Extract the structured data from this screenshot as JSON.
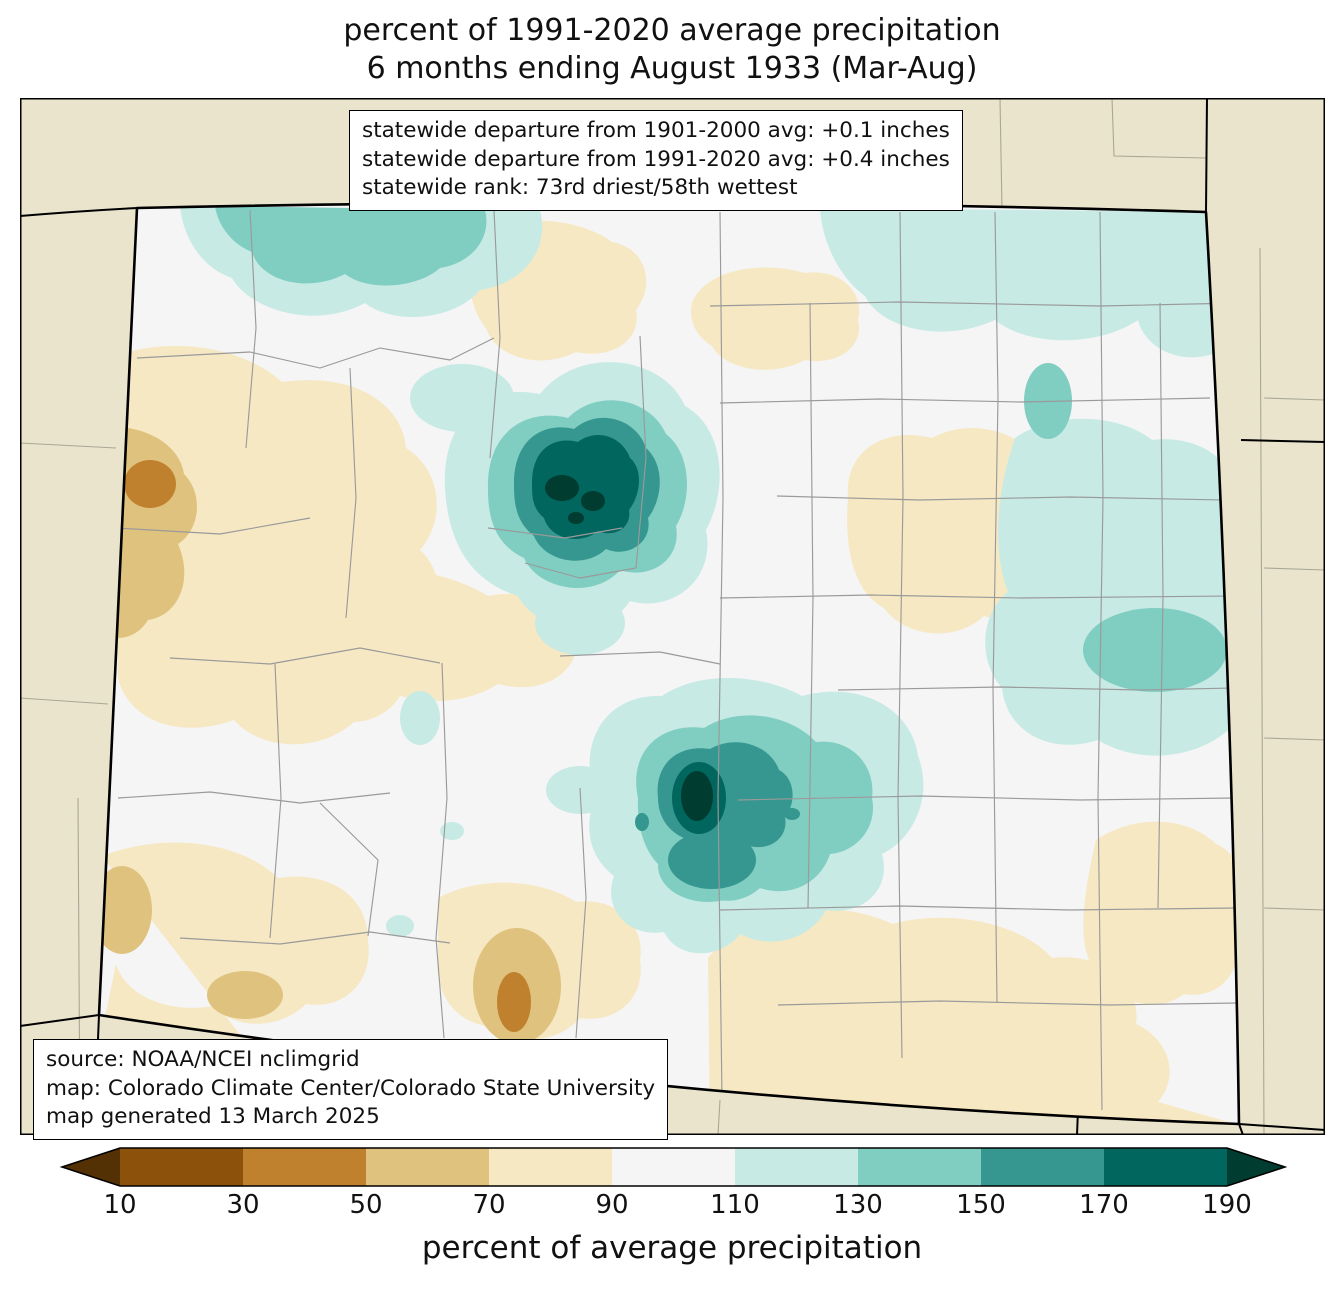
{
  "title": {
    "line1": "percent of 1991-2020 average precipitation",
    "line2": "6 months ending August 1933 (Mar-Aug)"
  },
  "stats_box": {
    "line1": "statewide departure from 1901-2000 avg: +0.1 inches",
    "line2": "statewide departure from 1991-2020 avg: +0.4 inches",
    "line3": "statewide rank: 73rd driest/58th wettest"
  },
  "source_box": {
    "line1": "source: NOAA/NCEI nclimgrid",
    "line2": "map: Colorado Climate Center/Colorado State University",
    "line3": "map generated 13 March 2025"
  },
  "colorbar": {
    "label": "percent of average precipitation",
    "ticks": [
      "10",
      "30",
      "50",
      "70",
      "90",
      "110",
      "130",
      "150",
      "170",
      "190"
    ],
    "arrow_left_color": "#543005",
    "arrow_right_color": "#003c30",
    "segment_colors": [
      "#8c510a",
      "#bf812d",
      "#dfc27d",
      "#f6e8c3",
      "#f5f5f5",
      "#c7eae5",
      "#80cdc1",
      "#35978f",
      "#01665e"
    ]
  },
  "map": {
    "region": "Colorado",
    "palette": {
      "background_outside": "#eae4cc",
      "state_fill": "#f5f5f5",
      "county_line": "#9a9a9a",
      "state_border": "#000000",
      "class_30_50": "#bf812d",
      "class_50_70": "#dfc27d",
      "class_70_90": "#f6e8c3",
      "class_110_130": "#c7eae5",
      "class_130_150": "#80cdc1",
      "class_150_170": "#35978f",
      "class_170_190": "#01665e",
      "class_gt_190": "#003c30"
    }
  }
}
